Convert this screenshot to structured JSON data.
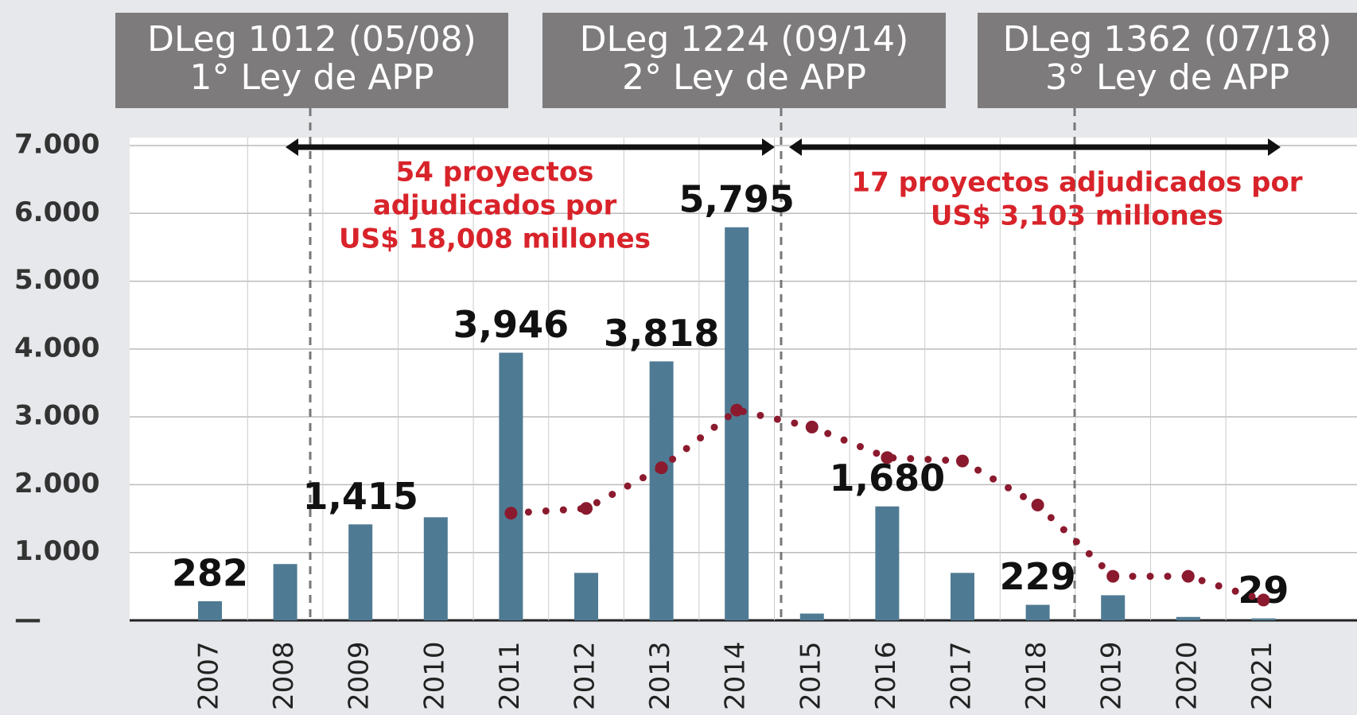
{
  "chart_data": {
    "type": "bar",
    "categories": [
      "2007",
      "2008",
      "2009",
      "2010",
      "2011",
      "2012",
      "2013",
      "2014",
      "2015",
      "2016",
      "2017",
      "2018",
      "2019",
      "2020",
      "2021"
    ],
    "series": [
      {
        "color": "#4f7a93",
        "values": [
          282,
          830,
          1415,
          1520,
          3946,
          700,
          3818,
          5795,
          100,
          1680,
          700,
          229,
          370,
          50,
          29
        ],
        "value_labels": [
          "282",
          null,
          "1,415",
          null,
          "3,946",
          null,
          "3,818",
          "5,795",
          null,
          "1,680",
          null,
          "229",
          null,
          null,
          "29"
        ]
      },
      {
        "color": "#8b1a2e",
        "values": [
          null,
          null,
          null,
          null,
          1580,
          1650,
          2250,
          3100,
          2850,
          2400,
          2350,
          1700,
          650,
          650,
          300
        ]
      }
    ],
    "ylim": [
      0,
      7000
    ],
    "yticks": [
      {
        "value": 0,
        "label": "—"
      },
      {
        "value": 1000,
        "label": "1.000"
      },
      {
        "value": 2000,
        "label": "2.000"
      },
      {
        "value": 3000,
        "label": "3.000"
      },
      {
        "value": 4000,
        "label": "4.000"
      },
      {
        "value": 5000,
        "label": "5.000"
      },
      {
        "value": 6000,
        "label": "6.000"
      },
      {
        "value": 7000,
        "label": "7.000"
      }
    ],
    "grid": true,
    "headers": [
      [
        "DLeg 1012 (05/08)",
        "1° Ley de APP"
      ],
      [
        "DLeg 1224  (09/14)",
        "2° Ley de APP"
      ],
      [
        "DLeg 1362 (07/18)",
        "3° Ley de APP"
      ]
    ],
    "annotations": [
      [
        "54 proyectos",
        "adjudicados por",
        "US$ 18,008 millones"
      ],
      [
        "17 proyectos adjudicados por",
        "US$ 3,103 millones"
      ]
    ]
  }
}
